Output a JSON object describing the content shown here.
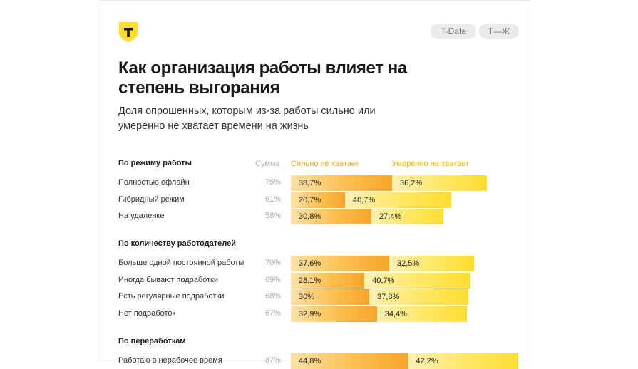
{
  "header": {
    "tags": [
      "T-Data",
      "T—Ж"
    ],
    "logo_letter": "T"
  },
  "title": "Как организация работы влияет на степень выгорания",
  "subtitle": "Доля опрошенных, которым из-за работы сильно или умеренно не хватает времени на жизнь",
  "colors": {
    "strongly": "#f8a52a",
    "moderately": "#fddd30",
    "logo": "#ffdd2d"
  },
  "chart_data": {
    "type": "bar",
    "stacked": true,
    "orientation": "horizontal",
    "sum_label": "Сумма",
    "series": [
      {
        "name": "Сильно не хватает"
      },
      {
        "name": "Умеренно не хватает"
      }
    ],
    "groups": [
      {
        "title": "По режиму работы",
        "rows": [
          {
            "label": "Полностью офлайн",
            "sum": "75%",
            "values": [
              38.7,
              36.2
            ],
            "labels": [
              "38,7%",
              "36,2%"
            ]
          },
          {
            "label": "Гибридный режим",
            "sum": "61%",
            "values": [
              20.7,
              40.7
            ],
            "labels": [
              "20,7%",
              "40,7%"
            ]
          },
          {
            "label": "На удаленке",
            "sum": "58%",
            "values": [
              30.8,
              27.4
            ],
            "labels": [
              "30,8%",
              "27,4%"
            ]
          }
        ]
      },
      {
        "title": "По количеству работодателей",
        "rows": [
          {
            "label": "Больше одной постоянной работы",
            "sum": "70%",
            "values": [
              37.6,
              32.5
            ],
            "labels": [
              "37,6%",
              "32,5%"
            ]
          },
          {
            "label": "Иногда бывают подработки",
            "sum": "69%",
            "values": [
              28.1,
              40.7
            ],
            "labels": [
              "28,1%",
              "40,7%"
            ]
          },
          {
            "label": "Есть регулярные подработки",
            "sum": "68%",
            "values": [
              30,
              37.8
            ],
            "labels": [
              "30%",
              "37,8%"
            ]
          },
          {
            "label": "Нет подработок",
            "sum": "67%",
            "values": [
              32.9,
              34.4
            ],
            "labels": [
              "32,9%",
              "34,4%"
            ]
          }
        ]
      },
      {
        "title": "По переработкам",
        "rows": [
          {
            "label": "Работаю в нерабочее время",
            "sum": "87%",
            "values": [
              44.8,
              42.2
            ],
            "labels": [
              "44,8%",
              "42,2%"
            ]
          }
        ]
      }
    ]
  }
}
